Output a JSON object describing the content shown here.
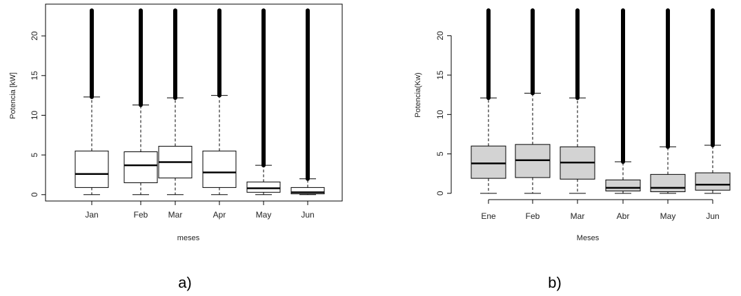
{
  "panels": [
    {
      "label": "a)"
    },
    {
      "label": "b)"
    }
  ],
  "chart_data": [
    {
      "type": "box",
      "xlabel": "meses",
      "ylabel": "Potencia [kW]",
      "ylim": [
        -0.8,
        24
      ],
      "yticks": [
        0,
        5,
        10,
        15,
        20
      ],
      "box_fill": "#ffffff",
      "frame": "full",
      "categories": [
        "Jan",
        "Feb",
        "Mar",
        "Apr",
        "May",
        "Jun"
      ],
      "boxes": [
        {
          "min": 0,
          "q1": 0.9,
          "median": 2.6,
          "q3": 5.5,
          "whisker_high": 12.3,
          "outliers_to": 23.2
        },
        {
          "min": 0,
          "q1": 1.5,
          "median": 3.7,
          "q3": 5.4,
          "whisker_high": 11.3,
          "outliers_to": 23.2
        },
        {
          "min": 0,
          "q1": 2.1,
          "median": 4.1,
          "q3": 6.1,
          "whisker_high": 12.2,
          "outliers_to": 23.2
        },
        {
          "min": 0,
          "q1": 0.9,
          "median": 2.8,
          "q3": 5.5,
          "whisker_high": 12.5,
          "outliers_to": 23.2
        },
        {
          "min": 0,
          "q1": 0.3,
          "median": 0.8,
          "q3": 1.6,
          "whisker_high": 3.7,
          "outliers_to": 23.2
        },
        {
          "min": 0,
          "q1": 0.1,
          "median": 0.3,
          "q3": 0.9,
          "whisker_high": 2.0,
          "outliers_to": 23.2
        }
      ]
    },
    {
      "type": "box",
      "xlabel": "Meses",
      "ylabel": "Potencia(Kw)",
      "ylim": [
        -0.8,
        24
      ],
      "yticks": [
        0,
        5,
        10,
        15,
        20
      ],
      "box_fill": "#d3d3d3",
      "frame": "open",
      "categories": [
        "Ene",
        "Feb",
        "Mar",
        "Abr",
        "May",
        "Jun"
      ],
      "boxes": [
        {
          "min": 0,
          "q1": 1.9,
          "median": 3.8,
          "q3": 6.0,
          "whisker_high": 12.1,
          "outliers_to": 23.2
        },
        {
          "min": 0,
          "q1": 2.0,
          "median": 4.2,
          "q3": 6.2,
          "whisker_high": 12.7,
          "outliers_to": 23.2
        },
        {
          "min": 0,
          "q1": 1.8,
          "median": 3.9,
          "q3": 5.9,
          "whisker_high": 12.1,
          "outliers_to": 23.2
        },
        {
          "min": 0,
          "q1": 0.3,
          "median": 0.7,
          "q3": 1.7,
          "whisker_high": 4.0,
          "outliers_to": 23.2
        },
        {
          "min": 0,
          "q1": 0.2,
          "median": 0.7,
          "q3": 2.4,
          "whisker_high": 5.9,
          "outliers_to": 23.2
        },
        {
          "min": 0,
          "q1": 0.4,
          "median": 1.1,
          "q3": 2.6,
          "whisker_high": 6.1,
          "outliers_to": 23.2
        }
      ]
    }
  ]
}
